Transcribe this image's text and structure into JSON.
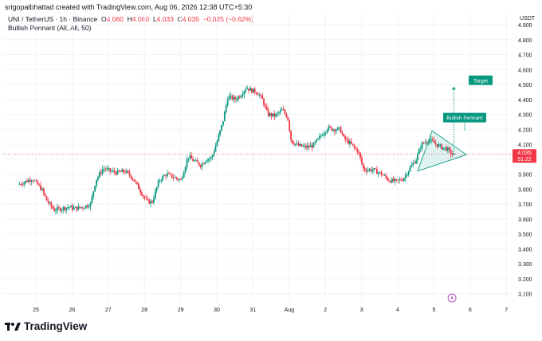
{
  "header": {
    "attribution": "srigopalbhattad created with TradingView.com, Aug 06, 2026 12:38 UTC+5:30"
  },
  "legend": {
    "symbol": "UNI / TetherUS · 1h · Binance",
    "open_label": "O",
    "open_value": "4.060",
    "high_label": "H",
    "high_value": "4.060",
    "low_label": "L",
    "low_value": "4.033",
    "close_label": "C",
    "close_value": "4.035",
    "change": "−0.025 (−0.62%)",
    "indicator": "Bullish Pennant (All, All, 50)"
  },
  "colors": {
    "up": "#089981",
    "down": "#f23645",
    "pattern": "#089981",
    "grid": "#f0f3fa"
  },
  "footer": {
    "brand": "TradingView"
  },
  "chart_data": {
    "type": "candlestick",
    "currency": "USDT",
    "ylim": [
      3.05,
      4.98
    ],
    "y_ticks": [
      "4.900",
      "4.800",
      "4.700",
      "4.600",
      "4.500",
      "4.400",
      "4.300",
      "4.200",
      "4.100",
      "4.000",
      "3.900",
      "3.800",
      "3.700",
      "3.600",
      "3.500",
      "3.400",
      "3.300",
      "3.200",
      "3.100"
    ],
    "x_ticks": [
      "25",
      "26",
      "27",
      "28",
      "29",
      "30",
      "31",
      "Aug",
      "2",
      "3",
      "4",
      "5",
      "6",
      "7"
    ],
    "last_price": "4.035",
    "countdown": "51:22",
    "price_path": [
      [
        24.55,
        3.83
      ],
      [
        24.75,
        3.85
      ],
      [
        24.95,
        3.87
      ],
      [
        25.05,
        3.84
      ],
      [
        25.2,
        3.8
      ],
      [
        25.35,
        3.72
      ],
      [
        25.55,
        3.66
      ],
      [
        25.75,
        3.67
      ],
      [
        25.95,
        3.68
      ],
      [
        26.1,
        3.67
      ],
      [
        26.35,
        3.68
      ],
      [
        26.55,
        3.7
      ],
      [
        26.7,
        3.86
      ],
      [
        26.9,
        3.94
      ],
      [
        27.1,
        3.92
      ],
      [
        27.3,
        3.91
      ],
      [
        27.5,
        3.92
      ],
      [
        27.7,
        3.88
      ],
      [
        27.9,
        3.8
      ],
      [
        28.1,
        3.72
      ],
      [
        28.25,
        3.71
      ],
      [
        28.45,
        3.86
      ],
      [
        28.65,
        3.9
      ],
      [
        28.85,
        3.88
      ],
      [
        29.05,
        3.86
      ],
      [
        29.25,
        4.02
      ],
      [
        29.4,
        3.99
      ],
      [
        29.6,
        3.96
      ],
      [
        29.75,
        4.0
      ],
      [
        29.9,
        4.01
      ],
      [
        30.05,
        4.12
      ],
      [
        30.2,
        4.24
      ],
      [
        30.35,
        4.42
      ],
      [
        30.55,
        4.4
      ],
      [
        30.7,
        4.43
      ],
      [
        30.85,
        4.48
      ],
      [
        31.0,
        4.46
      ],
      [
        31.15,
        4.45
      ],
      [
        31.3,
        4.4
      ],
      [
        31.45,
        4.3
      ],
      [
        31.65,
        4.29
      ],
      [
        31.85,
        4.33
      ],
      [
        32.0,
        4.28
      ],
      [
        32.1,
        4.12
      ],
      [
        32.3,
        4.09
      ],
      [
        32.5,
        4.08
      ],
      [
        32.7,
        4.09
      ],
      [
        32.9,
        4.15
      ],
      [
        33.1,
        4.21
      ],
      [
        33.3,
        4.2
      ],
      [
        33.45,
        4.2
      ],
      [
        33.55,
        4.14
      ],
      [
        33.75,
        4.1
      ],
      [
        33.95,
        4.05
      ],
      [
        34.1,
        3.93
      ],
      [
        34.35,
        3.93
      ],
      [
        34.6,
        3.9
      ],
      [
        34.8,
        3.86
      ],
      [
        35.0,
        3.85
      ],
      [
        35.2,
        3.87
      ],
      [
        35.35,
        3.93
      ],
      [
        35.55,
        4.0
      ],
      [
        35.7,
        4.1
      ],
      [
        35.9,
        4.13
      ],
      [
        36.1,
        4.1
      ],
      [
        36.25,
        4.08
      ],
      [
        36.4,
        4.07
      ],
      [
        36.55,
        4.03
      ]
    ],
    "annotations": [
      {
        "label": "Bullish Pennant"
      },
      {
        "label": "Target",
        "price": 4.47
      }
    ],
    "pattern": "pennant"
  }
}
